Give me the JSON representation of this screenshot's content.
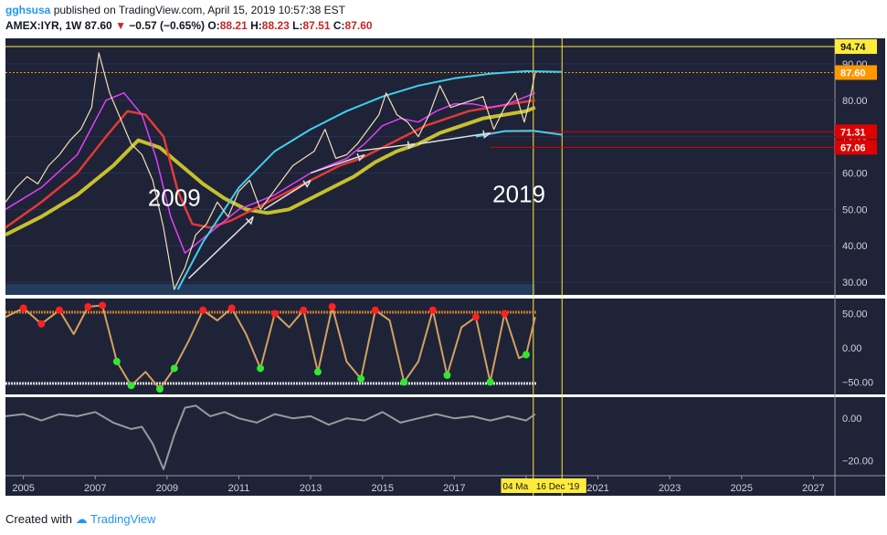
{
  "header": {
    "user": "gghsusa",
    "published_text": "published on TradingView.com, April 15, 2019 10:57:38 EST",
    "symbol": "AMEX:IYR, 1W",
    "last": "87.60",
    "change": "−0.57 (−0.65%)",
    "open_label": "O:",
    "open": "88.21",
    "high_label": "H:",
    "high": "88.23",
    "low_label": "L:",
    "low": "87.51",
    "close_label": "C:",
    "close": "87.60"
  },
  "footer": {
    "created_with": "Created with",
    "brand": "TradingView"
  },
  "colors": {
    "background": "#1e2338",
    "price_tag": "#ff9800",
    "level_tag": "#e00000",
    "marker_tag": "#ffeb3b",
    "ma_fast": "#e040fb",
    "ma_mid": "#e53935",
    "ma_slow": "#c6c02e",
    "arc": "#40d0f0"
  },
  "chart_data": [
    {
      "type": "line",
      "pane": "price",
      "title": "",
      "x_axis": {
        "ticks": [
          "2005",
          "2007",
          "2009",
          "2011",
          "2013",
          "2015",
          "2017",
          "2019",
          "2021",
          "2023",
          "2025",
          "2027"
        ],
        "range": [
          2004.5,
          2027.6
        ]
      },
      "y_axis": {
        "ticks": [
          "30.00",
          "40.00",
          "50.00",
          "60.00",
          "70.00",
          "80.00",
          "90.00"
        ],
        "range": [
          26.5,
          97
        ]
      },
      "price_tags": [
        {
          "value": 94.74,
          "label": "94.74",
          "style": "marker"
        },
        {
          "value": 87.6,
          "label": "87.60",
          "style": "last"
        },
        {
          "value": 71.31,
          "label": "71.31",
          "style": "level"
        },
        {
          "value": 67.06,
          "label": "67.06",
          "style": "level"
        }
      ],
      "annotations": [
        {
          "text": "2009",
          "x": 2009.2,
          "y": 51
        },
        {
          "text": "2019",
          "x": 2018.8,
          "y": 52
        }
      ],
      "vertical_lines": [
        2019.2,
        2020.0
      ],
      "time_labels": [
        "04 Ma",
        "16 Dec '19"
      ],
      "series": [
        {
          "name": "",
          "role": "price",
          "x": [
            2004.5,
            2004.8,
            2005.1,
            2005.4,
            2005.7,
            2006.0,
            2006.3,
            2006.6,
            2006.9,
            2007.1,
            2007.4,
            2007.7,
            2008.0,
            2008.3,
            2008.6,
            2008.9,
            2009.2,
            2009.5,
            2009.8,
            2010.1,
            2010.4,
            2010.7,
            2011.0,
            2011.3,
            2011.6,
            2011.9,
            2012.2,
            2012.5,
            2012.8,
            2013.1,
            2013.4,
            2013.7,
            2014.0,
            2014.3,
            2014.6,
            2014.9,
            2015.1,
            2015.4,
            2015.7,
            2016.0,
            2016.3,
            2016.6,
            2016.9,
            2017.2,
            2017.5,
            2017.8,
            2018.1,
            2018.4,
            2018.7,
            2018.95,
            2019.1,
            2019.25
          ],
          "y": [
            52,
            56,
            59,
            57,
            62,
            65,
            69,
            72,
            78,
            93,
            82,
            75,
            68,
            65,
            58,
            45,
            28,
            34,
            43,
            46,
            52,
            48,
            55,
            58,
            50,
            54,
            58,
            62,
            64,
            66,
            72,
            64,
            65,
            68,
            72,
            76,
            82,
            76,
            74,
            70,
            76,
            84,
            78,
            79,
            80,
            81,
            72,
            78,
            82,
            74,
            80,
            87.6
          ]
        },
        {
          "name": "",
          "role": "ma_fast",
          "x": [
            2004.5,
            2005.5,
            2006.5,
            2007.3,
            2007.8,
            2008.3,
            2008.7,
            2009.1,
            2009.5,
            2010.0,
            2010.5,
            2011.0,
            2011.5,
            2012.0,
            2012.5,
            2013.0,
            2013.5,
            2014.0,
            2014.5,
            2015.0,
            2015.5,
            2016.0,
            2016.5,
            2017.0,
            2017.5,
            2018.0,
            2018.5,
            2019.0,
            2019.25
          ],
          "y": [
            50,
            56,
            65,
            80,
            82,
            76,
            64,
            48,
            38,
            42,
            46,
            50,
            52,
            54,
            57,
            60,
            62,
            64,
            68,
            73,
            75,
            74,
            77,
            79,
            79,
            78,
            79,
            81,
            82
          ]
        },
        {
          "name": "",
          "role": "ma_mid",
          "x": [
            2004.5,
            2005.5,
            2006.5,
            2007.3,
            2007.9,
            2008.4,
            2008.9,
            2009.3,
            2009.7,
            2010.2,
            2010.8,
            2011.4,
            2012.0,
            2012.6,
            2013.2,
            2013.8,
            2014.4,
            2015.0,
            2015.6,
            2016.2,
            2016.8,
            2017.4,
            2018.0,
            2018.6,
            2019.25
          ],
          "y": [
            45,
            52,
            60,
            70,
            77,
            76,
            70,
            55,
            46,
            45,
            47,
            50,
            53,
            56,
            59,
            62,
            64,
            67,
            70,
            73,
            75,
            77,
            78,
            79,
            80
          ]
        },
        {
          "name": "",
          "role": "ma_slow",
          "x": [
            2004.5,
            2005.5,
            2006.5,
            2007.5,
            2008.2,
            2008.8,
            2009.4,
            2010.0,
            2010.6,
            2011.2,
            2011.8,
            2012.4,
            2013.0,
            2013.6,
            2014.2,
            2014.8,
            2015.4,
            2016.0,
            2016.6,
            2017.2,
            2017.8,
            2018.4,
            2019.0,
            2019.25
          ],
          "y": [
            43,
            48,
            54,
            62,
            69,
            67,
            62,
            57,
            53,
            50,
            49,
            50,
            53,
            56,
            59,
            63,
            66,
            68,
            71,
            73,
            75,
            76,
            77,
            78
          ]
        },
        {
          "name": "",
          "role": "arc_upper",
          "x": [
            2009.3,
            2010.0,
            2011.0,
            2012.0,
            2013.0,
            2014.0,
            2015.0,
            2016.0,
            2017.0,
            2018.0,
            2019.0,
            2020.0
          ],
          "y": [
            28,
            41,
            56,
            66,
            72,
            77,
            81,
            84,
            86,
            87.3,
            88,
            87.8
          ]
        },
        {
          "name": "",
          "role": "arc_lower",
          "x": [
            2017.6,
            2018.4,
            2019.2,
            2020.0
          ],
          "y": [
            70,
            71.5,
            71.6,
            70.5
          ]
        }
      ],
      "arrows": [
        {
          "x": [
            2009.6,
            2011.4
          ],
          "y": [
            31,
            48
          ]
        },
        {
          "x": [
            2011.7,
            2013.0
          ],
          "y": [
            50,
            58
          ]
        },
        {
          "x": [
            2013.0,
            2014.5
          ],
          "y": [
            60,
            65
          ]
        },
        {
          "x": [
            2014.3,
            2015.9
          ],
          "y": [
            66,
            68
          ]
        },
        {
          "x": [
            2016.0,
            2018.0
          ],
          "y": [
            68,
            71
          ]
        }
      ]
    },
    {
      "type": "line",
      "pane": "oscillator",
      "y_axis": {
        "ticks": [
          "50.00",
          "0.00",
          "−50.00"
        ],
        "range": [
          -68,
          72
        ]
      },
      "bands": [
        52,
        -52
      ],
      "series": [
        {
          "name": "",
          "x": [
            2004.5,
            2005.0,
            2005.5,
            2006.0,
            2006.4,
            2006.8,
            2007.2,
            2007.6,
            2008.0,
            2008.4,
            2008.8,
            2009.2,
            2009.6,
            2010.0,
            2010.4,
            2010.8,
            2011.2,
            2011.6,
            2012.0,
            2012.4,
            2012.8,
            2013.2,
            2013.6,
            2014.0,
            2014.4,
            2014.8,
            2015.2,
            2015.6,
            2016.0,
            2016.4,
            2016.8,
            2017.2,
            2017.6,
            2018.0,
            2018.4,
            2018.8,
            2019.0,
            2019.25
          ],
          "y": [
            45,
            58,
            35,
            55,
            20,
            60,
            62,
            -20,
            -55,
            -35,
            -60,
            -30,
            10,
            55,
            40,
            58,
            20,
            -30,
            50,
            30,
            55,
            -35,
            60,
            -20,
            -45,
            55,
            40,
            -50,
            -20,
            55,
            -40,
            30,
            45,
            -50,
            50,
            -15,
            -10,
            45
          ]
        }
      ],
      "highs_marked": [
        2005.0,
        2005.5,
        2006.0,
        2006.8,
        2007.2,
        2010.0,
        2010.8,
        2012.0,
        2012.8,
        2013.6,
        2014.8,
        2016.4,
        2017.6,
        2018.4
      ],
      "lows_marked": [
        2007.6,
        2008.0,
        2008.8,
        2009.2,
        2011.6,
        2013.2,
        2014.4,
        2015.6,
        2016.8,
        2018.0,
        2019.0
      ]
    },
    {
      "type": "line",
      "pane": "momentum",
      "y_axis": {
        "ticks": [
          "0.00",
          "−20.00"
        ],
        "range": [
          -27,
          10
        ]
      },
      "series": [
        {
          "name": "",
          "x": [
            2004.5,
            2005.0,
            2005.5,
            2006.0,
            2006.5,
            2007.0,
            2007.5,
            2008.0,
            2008.3,
            2008.6,
            2008.9,
            2009.2,
            2009.5,
            2009.8,
            2010.2,
            2010.6,
            2011.0,
            2011.5,
            2012.0,
            2012.5,
            2013.0,
            2013.5,
            2014.0,
            2014.5,
            2015.0,
            2015.5,
            2016.0,
            2016.5,
            2017.0,
            2017.5,
            2018.0,
            2018.5,
            2019.0,
            2019.25
          ],
          "y": [
            1,
            2,
            -1,
            2,
            1,
            3,
            -2,
            -5,
            -4,
            -12,
            -24,
            -8,
            5,
            6,
            1,
            3,
            0,
            -2,
            2,
            0,
            1,
            -3,
            0,
            -1,
            3,
            -2,
            0,
            2,
            0,
            1,
            -1,
            1,
            -1,
            2
          ]
        }
      ]
    }
  ]
}
